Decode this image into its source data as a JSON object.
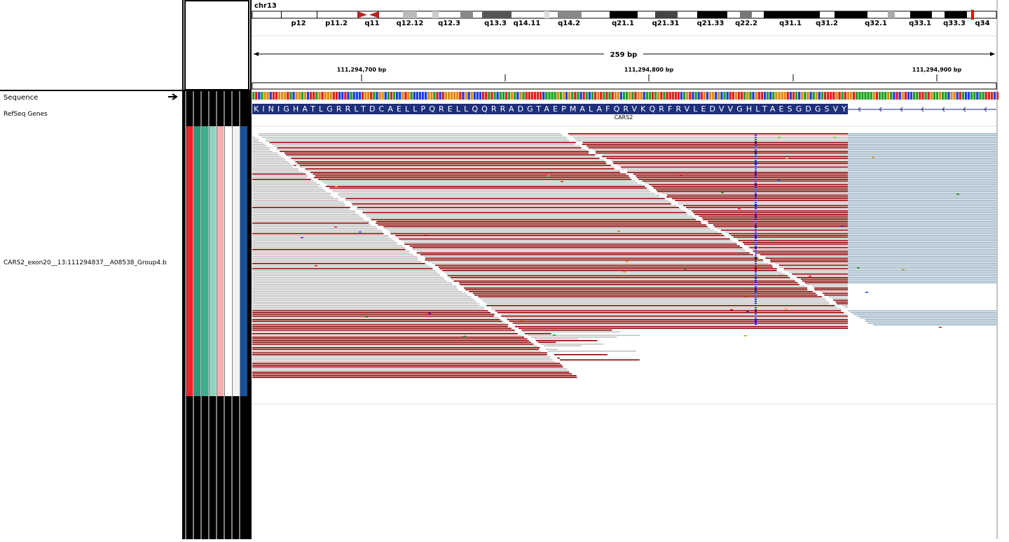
{
  "header": {
    "chromosome": "chr13",
    "cytobands": [
      "p12",
      "p11.2",
      "q11",
      "q12.12",
      "q12.3",
      "q13.3",
      "q14.11",
      "q14.2",
      "q21.1",
      "q21.31",
      "q21.33",
      "q22.2",
      "q31.1",
      "q31.2",
      "q32.1",
      "q33.1",
      "q33.3",
      "q34"
    ],
    "span": "259 bp",
    "ruler_labels": [
      "111,294,700 bp",
      "111,294,800 bp",
      "111,294,900 bp"
    ]
  },
  "tracks": {
    "sequence": "Sequence",
    "refseq": "RefSeq Genes",
    "alignment": "CARS2_exon20__13:111294837__A08538_Group4.b"
  },
  "gene": {
    "name": "CARS2",
    "amino_acids": "KINIGHATLGRRLTDCAELLPQRELLQQRRADGTAEPMALAFQRVKQRFRVLEDVVGHLTAESGDGSVY"
  }
}
